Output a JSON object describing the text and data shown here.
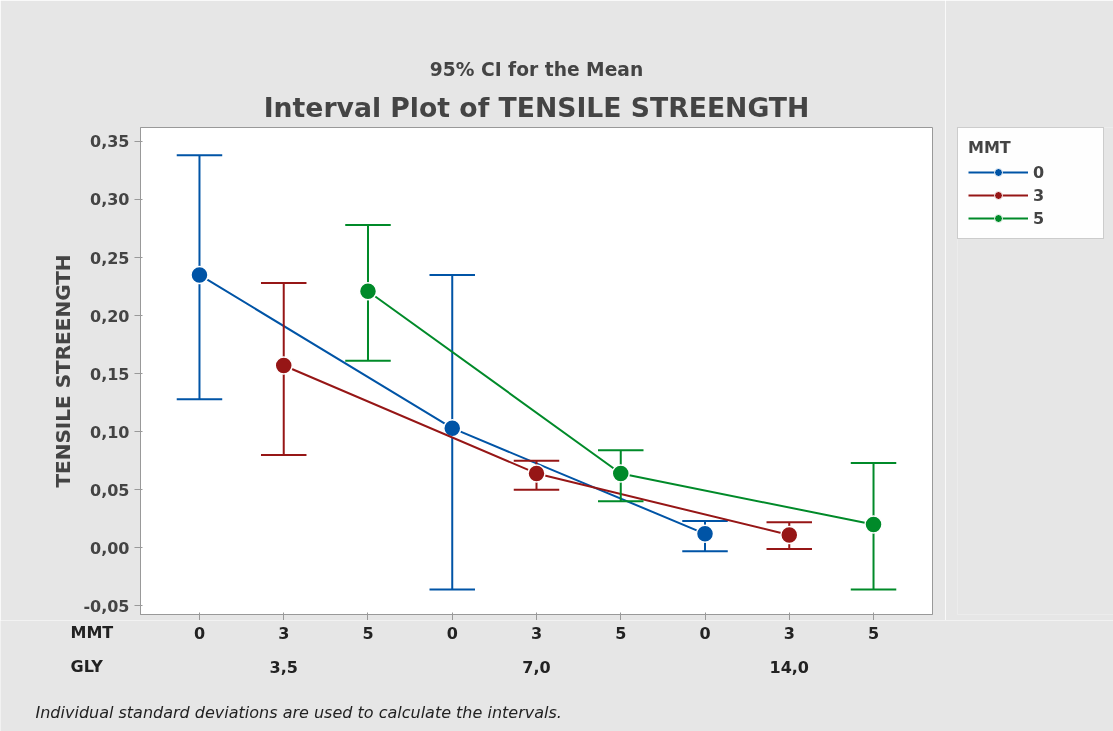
{
  "chart_data": {
    "type": "line",
    "title": "Interval Plot of TENSILE STREENGTH",
    "subtitle": "95% CI for the Mean",
    "xlabel": "MMT",
    "ylabel": "TENSILE STREENGTH",
    "legend_title": "MMT",
    "legend": "top right",
    "marker": "circle",
    "line_style": "solid",
    "grid": false,
    "categories": [
      "0",
      "3",
      "5",
      "0",
      "3",
      "5",
      "0",
      "3",
      "5"
    ],
    "annotations": [
      "GLY",
      "3,5",
      "7,0",
      "14,0",
      "Individual standard deviations are used to calculate the intervals."
    ],
    "ylim": [
      -0.0575,
      0.362
    ],
    "yticks": [
      {
        "value": -0.05,
        "label": "-0,05"
      },
      {
        "value": 0,
        "label": "0,00"
      },
      {
        "value": 0.05,
        "label": "0,05"
      },
      {
        "value": 0.1,
        "label": "0,10"
      },
      {
        "value": 0.15,
        "label": "0,15"
      },
      {
        "value": 0.2,
        "label": "0,20"
      },
      {
        "value": 0.25,
        "label": "0,25"
      },
      {
        "value": 0.3,
        "label": "0,30"
      },
      {
        "value": 0.35,
        "label": "0,35"
      }
    ],
    "series": [
      {
        "name": "0",
        "color": "#0054a6",
        "values": [
          0.235,
          null,
          null,
          0.103,
          null,
          null,
          0.012,
          null,
          null
        ],
        "errors": [
          [
            0.128,
            0.338
          ],
          null,
          null,
          [
            -0.036,
            0.235
          ],
          null,
          null,
          [
            -0.003,
            0.023
          ],
          null,
          null
        ]
      },
      {
        "name": "3",
        "color": "#961616",
        "values": [
          null,
          0.157,
          null,
          null,
          0.064,
          null,
          null,
          0.011,
          null
        ],
        "errors": [
          null,
          [
            0.08,
            0.228
          ],
          null,
          null,
          [
            0.05,
            0.075
          ],
          null,
          null,
          [
            -0.001,
            0.022
          ],
          null
        ]
      },
      {
        "name": "5",
        "color": "#008a29",
        "values": [
          null,
          null,
          0.221,
          null,
          null,
          0.064,
          null,
          null,
          0.02
        ],
        "errors": [
          null,
          null,
          [
            0.161,
            0.278
          ],
          null,
          null,
          [
            0.04,
            0.084
          ],
          null,
          null,
          [
            -0.036,
            0.073
          ]
        ]
      }
    ]
  }
}
